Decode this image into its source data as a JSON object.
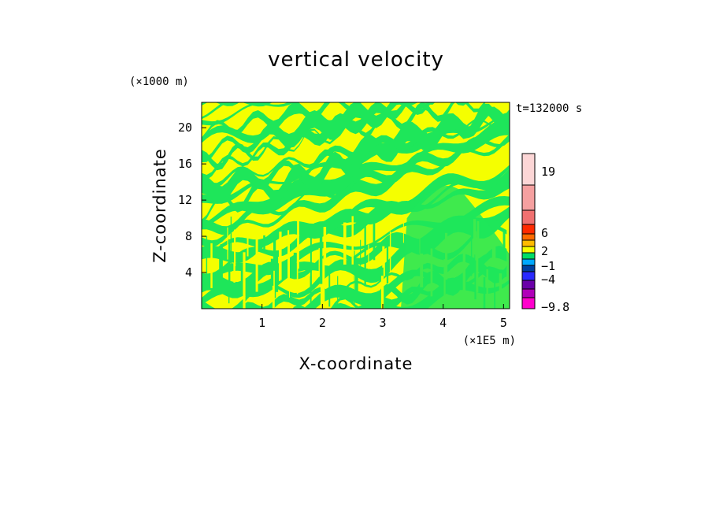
{
  "chart_data": {
    "type": "heatmap",
    "title": "vertical velocity",
    "xlabel": "X-coordinate",
    "ylabel": "Z-coordinate",
    "x_unit": "(×1E5 m)",
    "y_unit": "(×1000 m)",
    "time_label": "t=132000 s",
    "xlim": [
      0,
      5.1
    ],
    "ylim": [
      0,
      22.8
    ],
    "x_ticks": [
      "1",
      "2",
      "3",
      "4",
      "5"
    ],
    "x_tick_values": [
      1,
      2,
      3,
      4,
      5
    ],
    "y_ticks": [
      "4",
      "8",
      "12",
      "16",
      "20"
    ],
    "y_tick_values": [
      4,
      8,
      12,
      16,
      20
    ],
    "field_colors": {
      "positive": "#f5ff00",
      "negative": "#1ee65a"
    },
    "colorbar": {
      "labels": [
        "19",
        "6",
        "2",
        "−1",
        "−4",
        "−9.8"
      ],
      "levels": [
        {
          "color": "#ff00cc"
        },
        {
          "color": "#b000b8"
        },
        {
          "color": "#6a00a8"
        },
        {
          "color": "#2a2aff"
        },
        {
          "color": "#0040a0"
        },
        {
          "color": "#00a8ff"
        },
        {
          "color": "#00dd66"
        },
        {
          "color": "#f5ff00"
        },
        {
          "color": "#ffbb00"
        },
        {
          "color": "#ff6a00"
        },
        {
          "color": "#ff2a00"
        },
        {
          "color": "#f07070"
        },
        {
          "color": "#f5a0a0"
        },
        {
          "color": "#fcd6d6"
        }
      ]
    }
  }
}
